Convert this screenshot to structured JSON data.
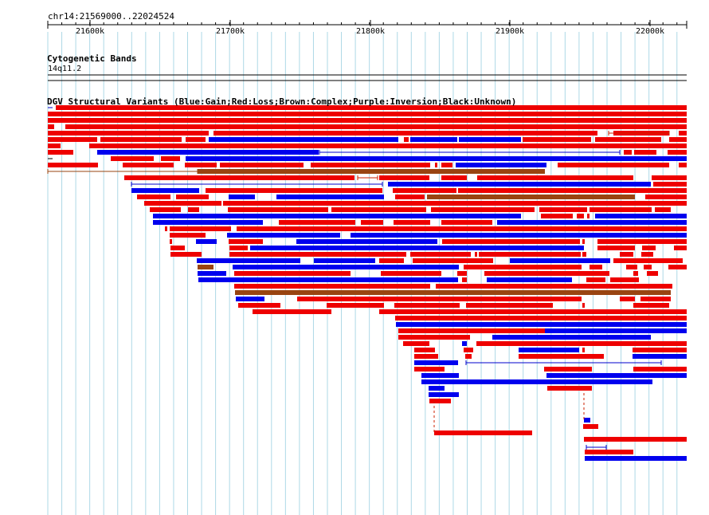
{
  "ruler": {
    "title": "chr14:21569000..22024524",
    "ticks": [
      "21600k",
      "21700k",
      "21800k",
      "21900k",
      "22000k"
    ]
  },
  "cyto_track": {
    "title": "Cytogenetic Bands",
    "band_label": "14q11.2"
  },
  "dgv_track": {
    "title": "DGV Structural Variants (Blue:Gain;Red:Loss;Brown:Complex;Purple:Inversion;Black:Unknown)"
  },
  "colors": {
    "gain": "#0000ee",
    "loss": "#ee0000",
    "complex": "#994411",
    "grid": "#add8e6",
    "connector_gain": "#0000cc",
    "connector_loss": "#cc2200"
  }
}
